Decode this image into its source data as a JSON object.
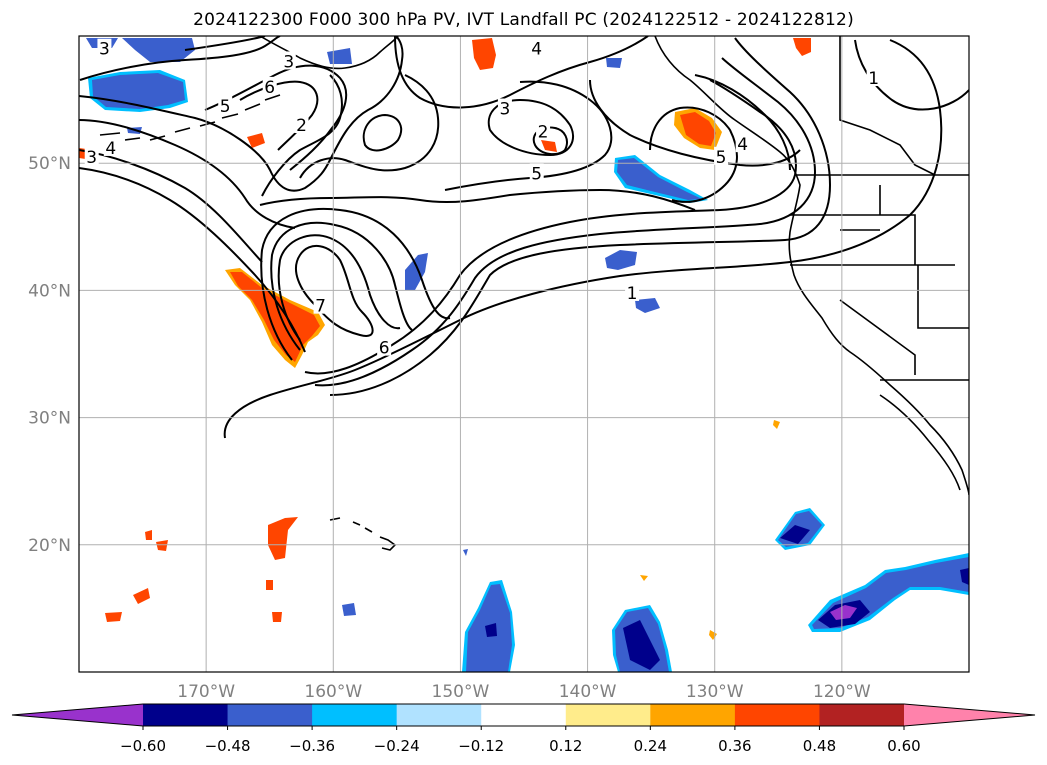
{
  "chart_data": {
    "type": "contour_map",
    "title": "2024122300 F000 300 hPa PV, IVT Landfall PC (2024122512 - 2024122812)",
    "map_extent": {
      "lon": [
        -180,
        -110
      ],
      "lat": [
        10,
        60
      ]
    },
    "grid": true,
    "lon_ticks": [
      {
        "value": -170,
        "label": "170°W"
      },
      {
        "value": -160,
        "label": "160°W"
      },
      {
        "value": -150,
        "label": "150°W"
      },
      {
        "value": -140,
        "label": "140°W"
      },
      {
        "value": -130,
        "label": "130°W"
      },
      {
        "value": -120,
        "label": "120°W"
      }
    ],
    "lat_ticks": [
      {
        "value": 20,
        "label": "20°N"
      },
      {
        "value": 30,
        "label": "30°N"
      },
      {
        "value": 40,
        "label": "40°N"
      },
      {
        "value": 50,
        "label": "50°N"
      }
    ],
    "colorbar": {
      "orientation": "horizontal",
      "extend": "both",
      "bounds": [
        -0.6,
        -0.48,
        -0.36,
        -0.24,
        -0.12,
        0.12,
        0.24,
        0.36,
        0.48,
        0.6
      ],
      "tick_labels": [
        "−0.60",
        "−0.48",
        "−0.36",
        "−0.24",
        "−0.12",
        "0.12",
        "0.24",
        "0.36",
        "0.48",
        "0.60"
      ],
      "colors": [
        "#9932cc",
        "#00008b",
        "#3a5fcd",
        "#00bfff",
        "#b0e2ff",
        "#ffffff",
        "#ffec8b",
        "#ffa500",
        "#ff4500",
        "#b22222",
        "#ff82ab"
      ]
    },
    "pv_contour_levels": [
      1,
      2,
      3,
      4,
      5,
      6,
      7
    ],
    "pv_contour_labels": [
      {
        "text": "3",
        "lon": -178,
        "lat": 59
      },
      {
        "text": "3",
        "lon": -163.5,
        "lat": 58
      },
      {
        "text": "4",
        "lon": -144,
        "lat": 59
      },
      {
        "text": "6",
        "lon": -165,
        "lat": 56
      },
      {
        "text": "5",
        "lon": -168.5,
        "lat": 54.5
      },
      {
        "text": "2",
        "lon": -162.5,
        "lat": 53
      },
      {
        "text": "3",
        "lon": -146.5,
        "lat": 54.3
      },
      {
        "text": "2",
        "lon": -143.5,
        "lat": 52.5
      },
      {
        "text": "4",
        "lon": -177.5,
        "lat": 51.2
      },
      {
        "text": "3",
        "lon": -179,
        "lat": 50.5
      },
      {
        "text": "5",
        "lon": -144,
        "lat": 49.2
      },
      {
        "text": "5",
        "lon": -129.5,
        "lat": 50.5
      },
      {
        "text": "4",
        "lon": -127.8,
        "lat": 51.5
      },
      {
        "text": "1",
        "lon": -117.5,
        "lat": 56.7
      },
      {
        "text": "7",
        "lon": -161,
        "lat": 38.8
      },
      {
        "text": "6",
        "lon": -156,
        "lat": 35.5
      },
      {
        "text": "1",
        "lon": -136.5,
        "lat": 39.8
      }
    ],
    "pc_anomalies": [
      {
        "sign": "positive",
        "lon": -163.5,
        "lat": 37.5,
        "peak": 0.5
      },
      {
        "sign": "positive",
        "lon": -130.5,
        "lat": 52.5,
        "peak": 0.4
      },
      {
        "sign": "positive",
        "lon": -148.5,
        "lat": 58.5,
        "peak": 0.4
      },
      {
        "sign": "negative",
        "lon": -174,
        "lat": 56,
        "peak": -0.4
      },
      {
        "sign": "negative",
        "lon": -133.5,
        "lat": 49,
        "peak": -0.4
      },
      {
        "sign": "negative",
        "lon": -135,
        "lat": 13,
        "peak": -0.55
      },
      {
        "sign": "negative",
        "lon": -148,
        "lat": 13.5,
        "peak": -0.45
      },
      {
        "sign": "negative",
        "lon": -120,
        "lat": 15,
        "peak": -0.62
      },
      {
        "sign": "negative",
        "lon": -123,
        "lat": 21,
        "peak": -0.5
      },
      {
        "sign": "negative",
        "lon": -112,
        "lat": 17,
        "peak": -0.45
      }
    ]
  }
}
